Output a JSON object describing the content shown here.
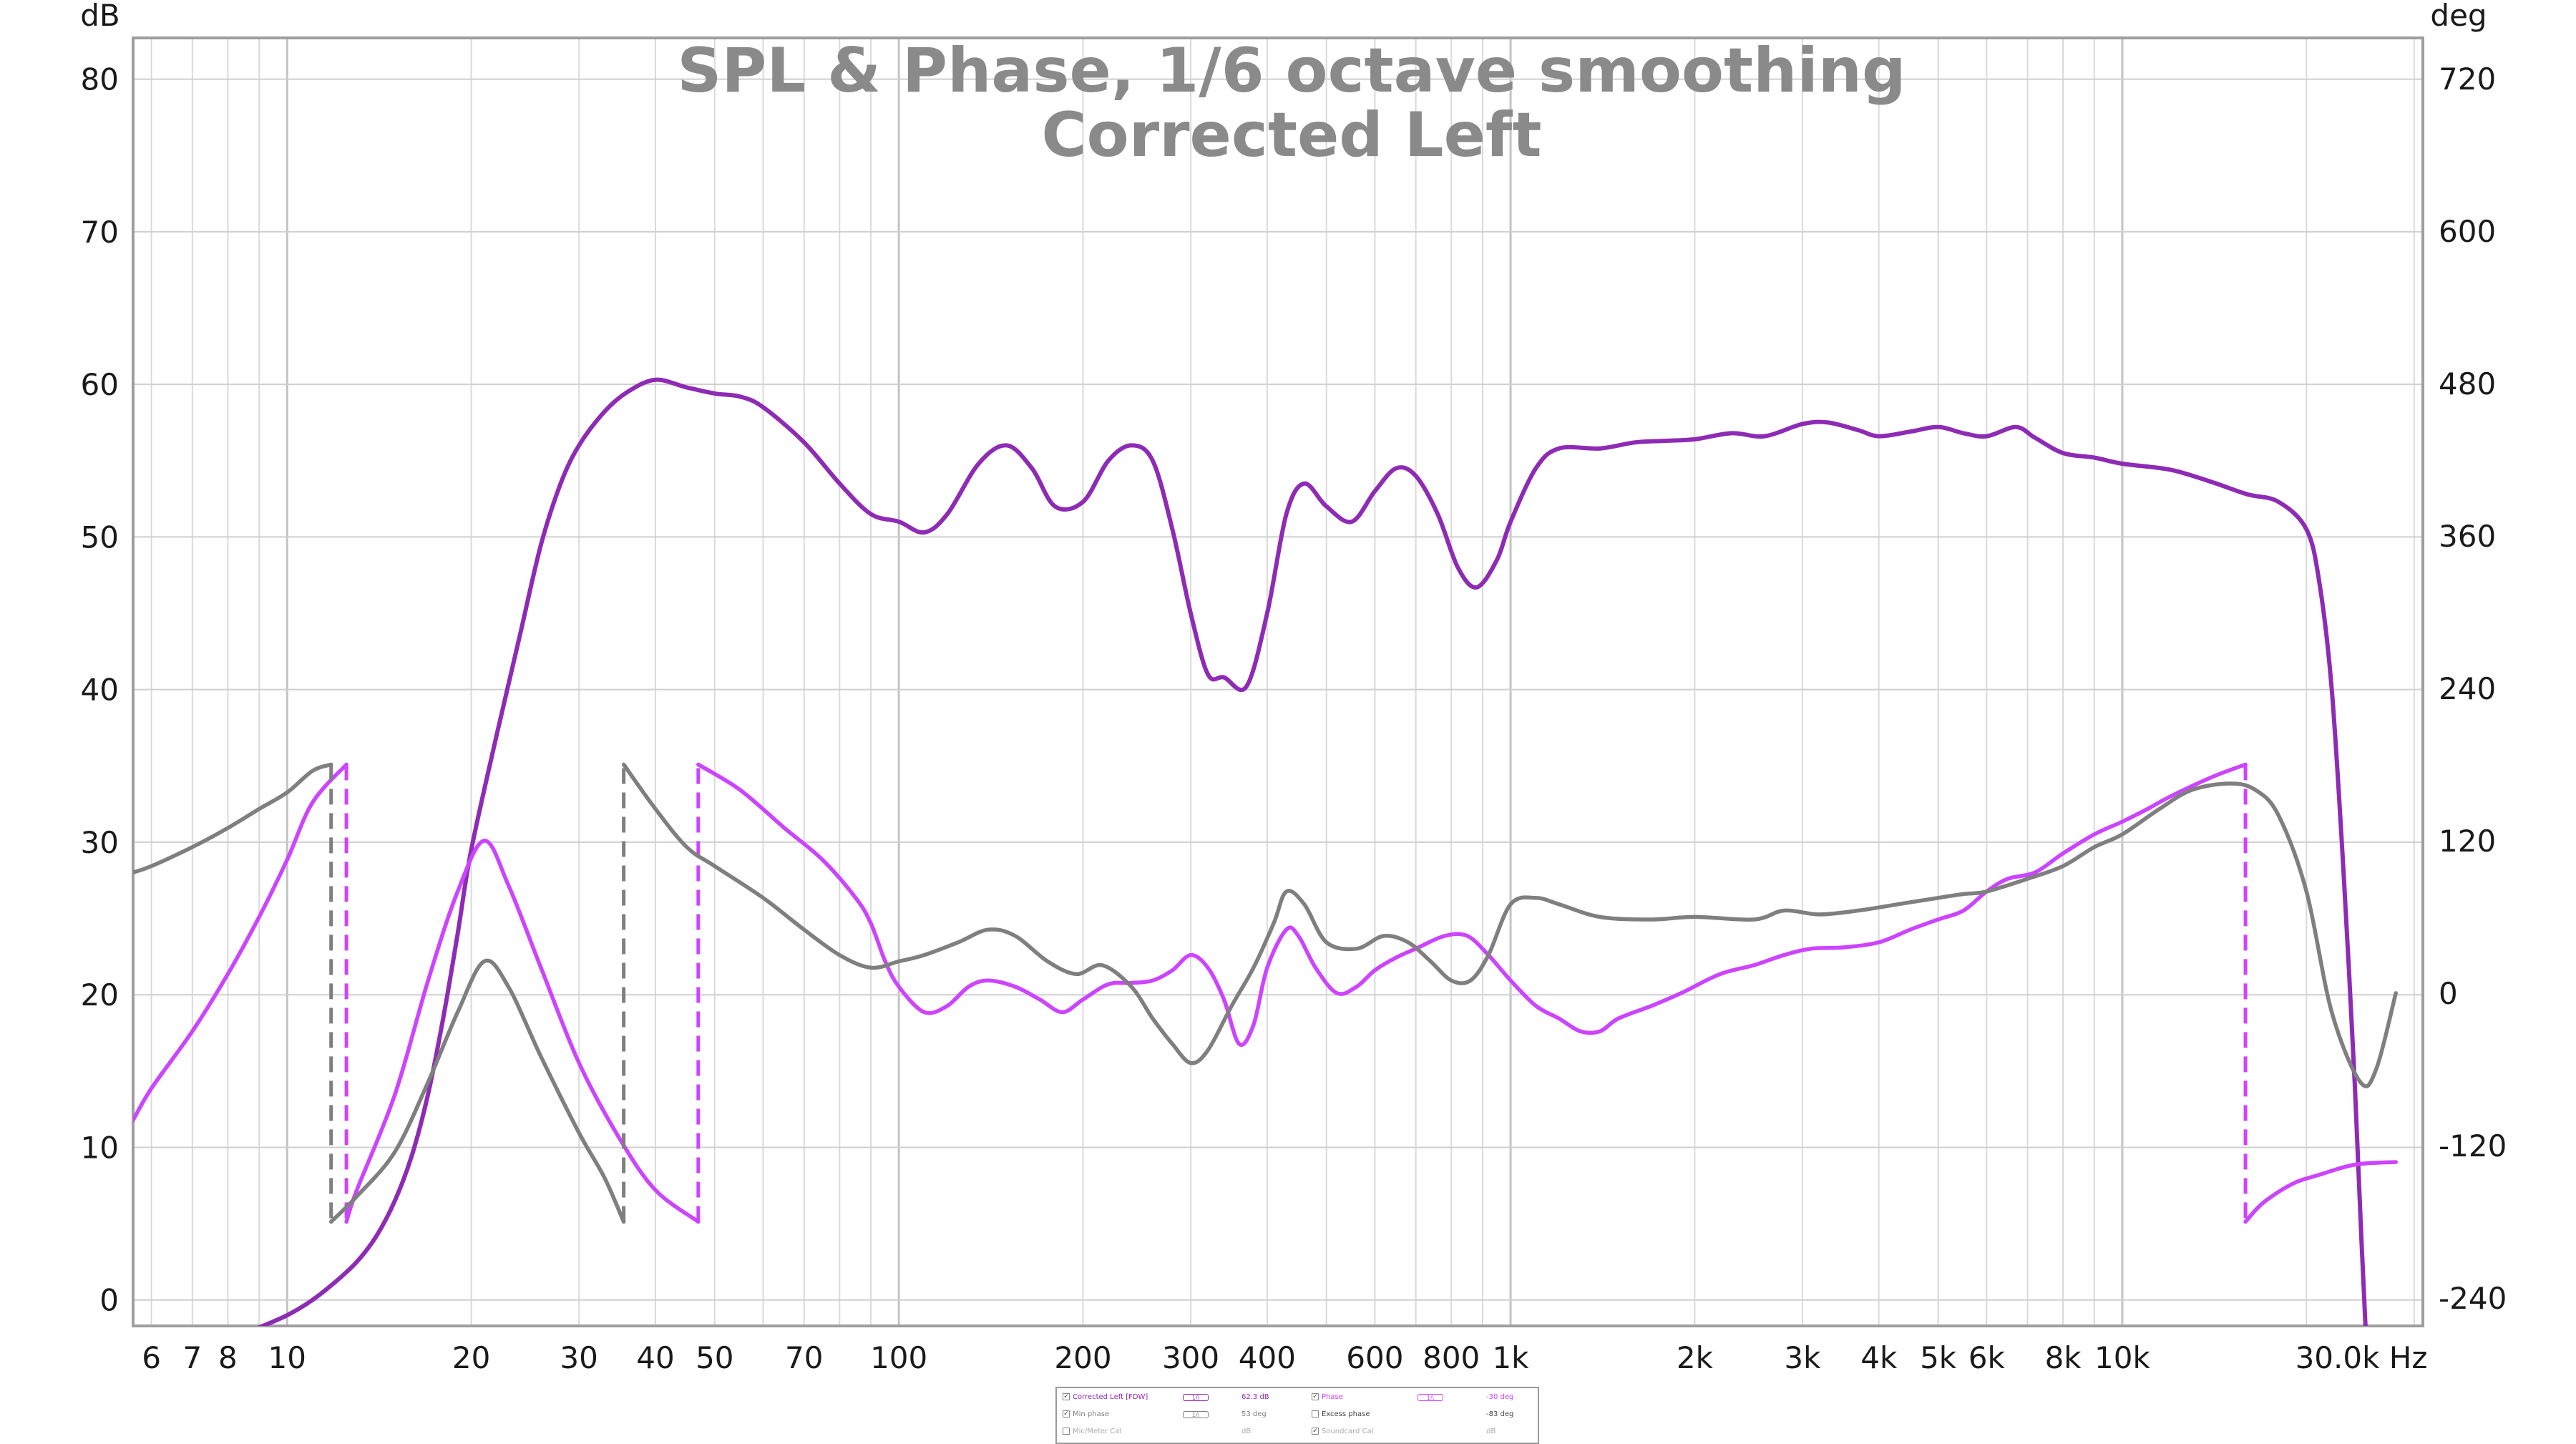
{
  "chart_data": {
    "type": "line",
    "title": "SPL & Phase, 1/6 octave smoothing",
    "subtitle": "Corrected Left",
    "x_axis": {
      "scale": "log",
      "range": [
        5.6,
        31000
      ],
      "ticks": [
        {
          "v": 6,
          "label": "6"
        },
        {
          "v": 7,
          "label": "7"
        },
        {
          "v": 8,
          "label": "8"
        },
        {
          "v": 10,
          "label": "10"
        },
        {
          "v": 20,
          "label": "20"
        },
        {
          "v": 30,
          "label": "30"
        },
        {
          "v": 40,
          "label": "40"
        },
        {
          "v": 50,
          "label": "50"
        },
        {
          "v": 70,
          "label": "70"
        },
        {
          "v": 100,
          "label": "100"
        },
        {
          "v": 200,
          "label": "200"
        },
        {
          "v": 300,
          "label": "300"
        },
        {
          "v": 400,
          "label": "400"
        },
        {
          "v": 600,
          "label": "600"
        },
        {
          "v": 800,
          "label": "800"
        },
        {
          "v": 1000,
          "label": "1k"
        },
        {
          "v": 2000,
          "label": "2k"
        },
        {
          "v": 3000,
          "label": "3k"
        },
        {
          "v": 4000,
          "label": "4k"
        },
        {
          "v": 5000,
          "label": "5k"
        },
        {
          "v": 6000,
          "label": "6k"
        },
        {
          "v": 8000,
          "label": "8k"
        },
        {
          "v": 10000,
          "label": "10k"
        }
      ],
      "end_label": "30.0k Hz"
    },
    "y_left": {
      "label": "dB",
      "range": [
        -1.7,
        82.7
      ],
      "ticks": [
        0,
        10,
        20,
        30,
        40,
        50,
        60,
        70,
        80
      ]
    },
    "y_right": {
      "label": "deg",
      "range": [
        -262,
        752
      ],
      "ticks": [
        -240,
        -120,
        0,
        120,
        240,
        360,
        480,
        600,
        720
      ]
    },
    "grid": true,
    "series": [
      {
        "name": "Corrected Left [FDW]",
        "axis": "left",
        "color": "#8e2bb5",
        "points": [
          [
            9,
            -1.8
          ],
          [
            10,
            -1
          ],
          [
            11,
            0
          ],
          [
            12,
            1.2
          ],
          [
            13,
            2.5
          ],
          [
            14,
            4.2
          ],
          [
            15,
            6.5
          ],
          [
            16,
            9.5
          ],
          [
            17,
            13.5
          ],
          [
            18,
            18.5
          ],
          [
            19,
            24
          ],
          [
            20,
            29.5
          ],
          [
            22,
            37
          ],
          [
            24,
            43.5
          ],
          [
            26,
            49.5
          ],
          [
            28,
            53.5
          ],
          [
            30,
            56
          ],
          [
            33,
            58.2
          ],
          [
            36,
            59.5
          ],
          [
            40,
            60.3
          ],
          [
            45,
            59.8
          ],
          [
            50,
            59.4
          ],
          [
            55,
            59.2
          ],
          [
            60,
            58.5
          ],
          [
            70,
            56.2
          ],
          [
            80,
            53.5
          ],
          [
            90,
            51.5
          ],
          [
            100,
            51
          ],
          [
            110,
            50.3
          ],
          [
            120,
            51.5
          ],
          [
            135,
            54.8
          ],
          [
            150,
            56
          ],
          [
            165,
            54.5
          ],
          [
            180,
            52
          ],
          [
            200,
            52.3
          ],
          [
            220,
            55
          ],
          [
            240,
            56
          ],
          [
            260,
            55
          ],
          [
            280,
            50.5
          ],
          [
            300,
            45
          ],
          [
            320,
            41
          ],
          [
            340,
            40.8
          ],
          [
            370,
            40.2
          ],
          [
            400,
            45
          ],
          [
            430,
            51.5
          ],
          [
            460,
            53.5
          ],
          [
            500,
            52
          ],
          [
            550,
            51
          ],
          [
            600,
            53
          ],
          [
            650,
            54.5
          ],
          [
            700,
            54
          ],
          [
            760,
            51.5
          ],
          [
            820,
            48
          ],
          [
            880,
            46.7
          ],
          [
            950,
            48.5
          ],
          [
            1000,
            51
          ],
          [
            1100,
            54.5
          ],
          [
            1200,
            55.8
          ],
          [
            1400,
            55.8
          ],
          [
            1600,
            56.2
          ],
          [
            1800,
            56.3
          ],
          [
            2000,
            56.4
          ],
          [
            2300,
            56.8
          ],
          [
            2600,
            56.6
          ],
          [
            3000,
            57.4
          ],
          [
            3300,
            57.5
          ],
          [
            3700,
            57
          ],
          [
            4000,
            56.6
          ],
          [
            4500,
            56.9
          ],
          [
            5000,
            57.2
          ],
          [
            5500,
            56.8
          ],
          [
            6000,
            56.6
          ],
          [
            6700,
            57.2
          ],
          [
            7200,
            56.5
          ],
          [
            8000,
            55.5
          ],
          [
            9000,
            55.2
          ],
          [
            10000,
            54.8
          ],
          [
            12000,
            54.4
          ],
          [
            14000,
            53.6
          ],
          [
            16000,
            52.8
          ],
          [
            18000,
            52.3
          ],
          [
            20000,
            50.5
          ],
          [
            21000,
            47
          ],
          [
            22000,
            40
          ],
          [
            23000,
            28
          ],
          [
            24000,
            14
          ],
          [
            24600,
            4
          ],
          [
            25000,
            -2
          ]
        ]
      },
      {
        "name": "Phase",
        "axis": "right",
        "color": "#cc44ff",
        "dashed_wraps": true,
        "points": [
          [
            5.6,
            -100
          ],
          [
            6,
            -75
          ],
          [
            7,
            -30
          ],
          [
            8,
            15
          ],
          [
            9,
            60
          ],
          [
            10,
            105
          ],
          [
            11,
            150
          ],
          [
            12.5,
            180
          ],
          [
            12.5,
            -180
          ],
          [
            13,
            -155
          ],
          [
            15,
            -80
          ],
          [
            17,
            10
          ],
          [
            19,
            80
          ],
          [
            21,
            120
          ],
          [
            23,
            85
          ],
          [
            26,
            20
          ],
          [
            30,
            -55
          ],
          [
            35,
            -115
          ],
          [
            40,
            -155
          ],
          [
            47,
            -180
          ],
          [
            47,
            180
          ],
          [
            55,
            160
          ],
          [
            65,
            130
          ],
          [
            75,
            105
          ],
          [
            85,
            75
          ],
          [
            90,
            55
          ],
          [
            95,
            25
          ],
          [
            100,
            5
          ],
          [
            110,
            -15
          ],
          [
            120,
            -10
          ],
          [
            130,
            5
          ],
          [
            140,
            10
          ],
          [
            155,
            5
          ],
          [
            170,
            -5
          ],
          [
            185,
            -15
          ],
          [
            200,
            -5
          ],
          [
            220,
            7
          ],
          [
            240,
            8
          ],
          [
            260,
            10
          ],
          [
            280,
            18
          ],
          [
            300,
            30
          ],
          [
            320,
            20
          ],
          [
            340,
            -5
          ],
          [
            360,
            -40
          ],
          [
            380,
            -25
          ],
          [
            400,
            20
          ],
          [
            430,
            50
          ],
          [
            450,
            45
          ],
          [
            480,
            20
          ],
          [
            520,
            0
          ],
          [
            560,
            5
          ],
          [
            600,
            18
          ],
          [
            650,
            28
          ],
          [
            700,
            35
          ],
          [
            780,
            45
          ],
          [
            850,
            45
          ],
          [
            920,
            30
          ],
          [
            1000,
            10
          ],
          [
            1100,
            -10
          ],
          [
            1200,
            -20
          ],
          [
            1300,
            -30
          ],
          [
            1400,
            -30
          ],
          [
            1500,
            -20
          ],
          [
            1700,
            -10
          ],
          [
            1900,
            0
          ],
          [
            2200,
            15
          ],
          [
            2500,
            22
          ],
          [
            2800,
            30
          ],
          [
            3100,
            35
          ],
          [
            3500,
            36
          ],
          [
            4000,
            40
          ],
          [
            4500,
            50
          ],
          [
            5000,
            58
          ],
          [
            5500,
            65
          ],
          [
            6000,
            80
          ],
          [
            6500,
            90
          ],
          [
            7200,
            95
          ],
          [
            8000,
            110
          ],
          [
            9000,
            125
          ],
          [
            10000,
            135
          ],
          [
            11000,
            145
          ],
          [
            12000,
            155
          ],
          [
            14000,
            170
          ],
          [
            15900,
            180
          ],
          [
            15900,
            -180
          ],
          [
            17000,
            -165
          ],
          [
            19000,
            -150
          ],
          [
            21000,
            -143
          ],
          [
            24000,
            -135
          ],
          [
            28000,
            -133
          ]
        ]
      },
      {
        "name": "Min phase",
        "axis": "right",
        "color": "#7f7f7f",
        "dashed_wraps": true,
        "points": [
          [
            5.6,
            95
          ],
          [
            6,
            100
          ],
          [
            7,
            115
          ],
          [
            8,
            130
          ],
          [
            9,
            145
          ],
          [
            10,
            158
          ],
          [
            11,
            175
          ],
          [
            11.8,
            180
          ],
          [
            11.8,
            -180
          ],
          [
            13,
            -160
          ],
          [
            15,
            -125
          ],
          [
            17,
            -70
          ],
          [
            19,
            -15
          ],
          [
            21,
            25
          ],
          [
            23,
            5
          ],
          [
            26,
            -50
          ],
          [
            30,
            -110
          ],
          [
            33,
            -145
          ],
          [
            35.5,
            -180
          ],
          [
            35.5,
            180
          ],
          [
            40,
            145
          ],
          [
            45,
            115
          ],
          [
            50,
            100
          ],
          [
            60,
            75
          ],
          [
            70,
            50
          ],
          [
            80,
            30
          ],
          [
            90,
            20
          ],
          [
            100,
            25
          ],
          [
            110,
            30
          ],
          [
            125,
            40
          ],
          [
            140,
            50
          ],
          [
            155,
            45
          ],
          [
            175,
            25
          ],
          [
            195,
            15
          ],
          [
            215,
            22
          ],
          [
            240,
            5
          ],
          [
            260,
            -20
          ],
          [
            280,
            -40
          ],
          [
            300,
            -55
          ],
          [
            320,
            -45
          ],
          [
            350,
            -10
          ],
          [
            380,
            20
          ],
          [
            410,
            55
          ],
          [
            430,
            80
          ],
          [
            460,
            70
          ],
          [
            500,
            40
          ],
          [
            560,
            35
          ],
          [
            620,
            45
          ],
          [
            680,
            40
          ],
          [
            740,
            25
          ],
          [
            800,
            10
          ],
          [
            860,
            10
          ],
          [
            920,
            30
          ],
          [
            1000,
            70
          ],
          [
            1100,
            75
          ],
          [
            1200,
            70
          ],
          [
            1400,
            60
          ],
          [
            1700,
            58
          ],
          [
            2000,
            60
          ],
          [
            2500,
            58
          ],
          [
            2800,
            65
          ],
          [
            3200,
            62
          ],
          [
            3700,
            65
          ],
          [
            4300,
            70
          ],
          [
            5000,
            75
          ],
          [
            5500,
            78
          ],
          [
            6000,
            80
          ],
          [
            7000,
            90
          ],
          [
            8000,
            100
          ],
          [
            9000,
            115
          ],
          [
            10000,
            125
          ],
          [
            11500,
            145
          ],
          [
            13000,
            160
          ],
          [
            15000,
            165
          ],
          [
            16500,
            160
          ],
          [
            18000,
            140
          ],
          [
            20000,
            80
          ],
          [
            22000,
            -15
          ],
          [
            24500,
            -70
          ],
          [
            26000,
            -60
          ],
          [
            28000,
            0
          ]
        ]
      }
    ],
    "legend": {
      "rows": [
        [
          {
            "check": "✓",
            "text": "Corrected Left [FDW]",
            "color": "#8e2bb5",
            "swatch": "1/\\"
          },
          {
            "text": "62.3 dB",
            "color": "#8e2bb5"
          },
          {
            "check": "✓",
            "text": "Phase",
            "color": "#cc44ff",
            "swatch": "1/\\"
          },
          {
            "text": "-30 deg",
            "color": "#cc44ff"
          }
        ],
        [
          {
            "check": "✓",
            "text": "Min phase",
            "color": "#7f7f7f",
            "swatch": "1/\\"
          },
          {
            "text": "53 deg",
            "color": "#7f7f7f"
          },
          {
            "check": "",
            "text": "Excess phase",
            "color": "#444444"
          },
          {
            "text": "-83 deg",
            "color": "#444444"
          }
        ],
        [
          {
            "check": "",
            "text": "Mic/Meter Cal",
            "color": "#aaaaaa"
          },
          {
            "text": "dB",
            "color": "#aaaaaa"
          },
          {
            "check": "✓",
            "text": "Soundcard Cal",
            "color": "#aaaaaa"
          },
          {
            "text": "dB",
            "color": "#aaaaaa"
          }
        ]
      ]
    }
  }
}
